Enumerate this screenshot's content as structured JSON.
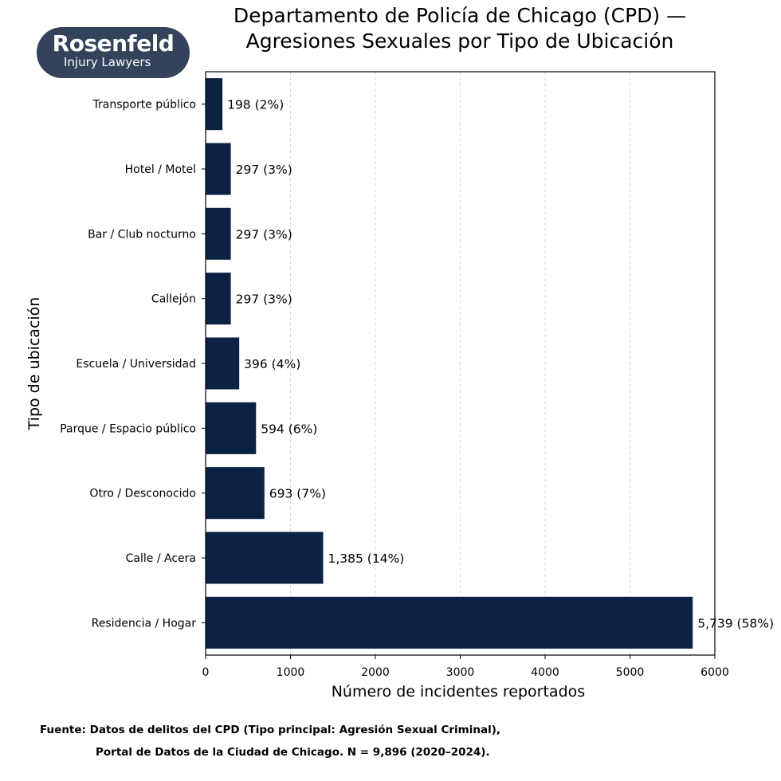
{
  "logo": {
    "name": "Rosenfeld",
    "tagline": "Injury Lawyers",
    "bg_color": "#34425c"
  },
  "chart_data": {
    "type": "bar",
    "orientation": "horizontal",
    "title_lines": [
      "Departamento de Policía de Chicago (CPD) —",
      "Agresiones Sexuales por Tipo de Ubicación"
    ],
    "xlabel": "Número de incidentes reportados",
    "ylabel": "Tipo de ubicación",
    "xlim": [
      0,
      6000
    ],
    "xticks": [
      0,
      1000,
      2000,
      3000,
      4000,
      5000,
      6000
    ],
    "grid": "x-dashed",
    "bar_color": "#0b2244",
    "categories": [
      "Transporte público",
      "Hotel / Motel",
      "Bar / Club nocturno",
      "Callejón",
      "Escuela / Universidad",
      "Parque / Espacio público",
      "Otro / Desconocido",
      "Calle / Acera",
      "Residencia / Hogar"
    ],
    "values": [
      198,
      297,
      297,
      297,
      396,
      594,
      693,
      1385,
      5739
    ],
    "data_labels": [
      "198 (2%)",
      "297 (3%)",
      "297 (3%)",
      "297 (3%)",
      "396 (4%)",
      "594 (6%)",
      "693 (7%)",
      "1,385 (14%)",
      "5,739 (58%)"
    ]
  },
  "source": {
    "line1": "Fuente: Datos de delitos del CPD (Tipo principal: Agresión Sexual Criminal),",
    "line2": "Portal de Datos de la Ciudad de Chicago. N = 9,896 (2020–2024)."
  }
}
